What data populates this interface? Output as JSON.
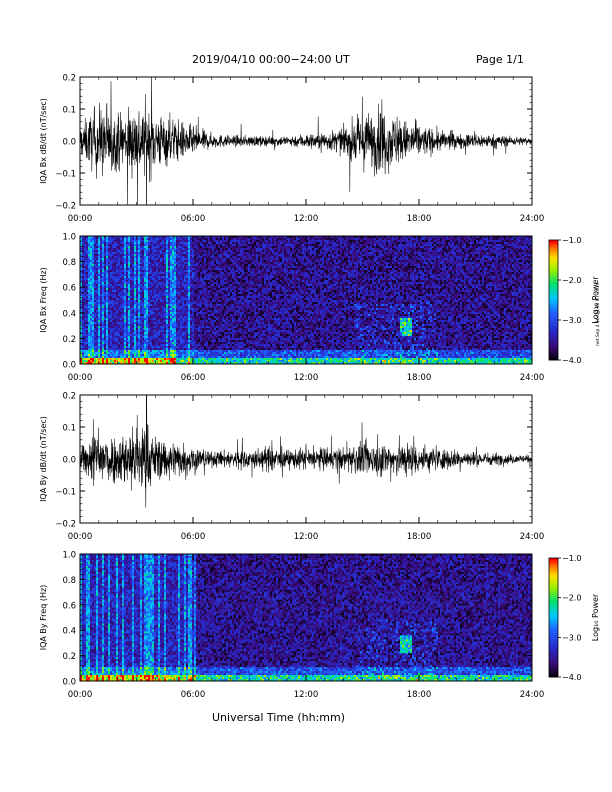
{
  "header": {
    "title": "2019/04/10   00:00−24:00 UT",
    "page": "Page 1/1"
  },
  "footer": {
    "xlabel": "Universal Time (hh:mm)",
    "stamp": "net Sep 4 16:09:38 UT 2019"
  },
  "colors": {
    "wave": "#000000",
    "background": "#ffffff",
    "spectrogram_bg": "#1b1a6e"
  },
  "chart_data": [
    {
      "type": "line",
      "ylabel": "IQA Bx dB/dt (nT/sec)",
      "xlabel": "",
      "xticks": [
        "00:00",
        "06:00",
        "12:00",
        "18:00",
        "24:00"
      ],
      "yticks": [
        "0.2",
        "0.1",
        "0.0",
        "−0.1",
        "−0.2"
      ],
      "xlim": [
        0,
        24
      ],
      "ylim": [
        -0.2,
        0.2
      ],
      "series": [
        {
          "x": [
            0,
            1,
            2,
            3,
            3.5,
            4,
            5,
            6,
            7,
            8,
            9,
            10,
            11,
            12,
            13,
            14,
            15,
            16,
            17,
            18,
            19,
            20,
            21,
            22,
            23,
            24
          ],
          "amplitude": [
            0.08,
            0.2,
            0.15,
            0.2,
            0.2,
            0.16,
            0.12,
            0.08,
            0.04,
            0.03,
            0.03,
            0.025,
            0.03,
            0.04,
            0.05,
            0.07,
            0.14,
            0.18,
            0.12,
            0.09,
            0.06,
            0.04,
            0.04,
            0.035,
            0.025,
            0.02
          ]
        }
      ]
    },
    {
      "type": "heatmap",
      "ylabel": "IQA Bx Freq (Hz)",
      "xticks": [
        "00:00",
        "06:00",
        "12:00",
        "18:00",
        "24:00"
      ],
      "yticks": [
        "1.0",
        "0.8",
        "0.6",
        "0.4",
        "0.2",
        "0.0"
      ],
      "xlim": [
        0,
        24
      ],
      "ylim": [
        0,
        1
      ],
      "colorbar": {
        "label": "Log₁₀ Power",
        "ticks": [
          "−1.0",
          "−2.0",
          "−3.0",
          "−4.0"
        ],
        "range": [
          -4,
          -1
        ]
      },
      "features": [
        {
          "x": [
            0,
            6
          ],
          "y": [
            0,
            1.0
          ],
          "level": -3.0,
          "desc": "broadband vertical bursts"
        },
        {
          "x": [
            16.9,
            17.6
          ],
          "y": [
            0.25,
            0.35
          ],
          "level": -2.6,
          "desc": "Pc1 emission"
        },
        {
          "x": [
            0,
            24
          ],
          "y": [
            0,
            0.05
          ],
          "level": -2.2,
          "desc": "low-frequency background"
        }
      ]
    },
    {
      "type": "line",
      "ylabel": "IQA By dB/dt (nT/sec)",
      "xticks": [
        "00:00",
        "06:00",
        "12:00",
        "18:00",
        "24:00"
      ],
      "yticks": [
        "0.2",
        "0.1",
        "0.0",
        "−0.1",
        "−0.2"
      ],
      "xlim": [
        0,
        24
      ],
      "ylim": [
        -0.2,
        0.2
      ],
      "series": [
        {
          "x": [
            0,
            1,
            2,
            3,
            3.5,
            4,
            5,
            6,
            7,
            8,
            9,
            10,
            11,
            12,
            13,
            14,
            15,
            16,
            17,
            18,
            19,
            20,
            21,
            22,
            23,
            24
          ],
          "amplitude": [
            0.06,
            0.17,
            0.12,
            0.2,
            0.2,
            0.12,
            0.1,
            0.08,
            0.04,
            0.05,
            0.05,
            0.07,
            0.05,
            0.06,
            0.06,
            0.06,
            0.09,
            0.09,
            0.1,
            0.08,
            0.06,
            0.05,
            0.04,
            0.035,
            0.025,
            0.02
          ]
        }
      ]
    },
    {
      "type": "heatmap",
      "ylabel": "IQA By Freq (Hz)",
      "xticks": [
        "00:00",
        "06:00",
        "12:00",
        "18:00",
        "24:00"
      ],
      "yticks": [
        "1.0",
        "0.8",
        "0.6",
        "0.4",
        "0.2",
        "0.0"
      ],
      "xlim": [
        0,
        24
      ],
      "ylim": [
        0,
        1
      ],
      "colorbar": {
        "label": "Log₁₀ Power",
        "ticks": [
          "−1.0",
          "−2.0",
          "−3.0",
          "−4.0"
        ],
        "range": [
          -4,
          -1
        ]
      },
      "features": [
        {
          "x": [
            0,
            6
          ],
          "y": [
            0,
            1.0
          ],
          "level": -3.0,
          "desc": "broadband vertical bursts"
        },
        {
          "x": [
            16.9,
            17.6
          ],
          "y": [
            0.25,
            0.35
          ],
          "level": -2.6,
          "desc": "Pc1 emission"
        },
        {
          "x": [
            0,
            24
          ],
          "y": [
            0,
            0.05
          ],
          "level": -2.2,
          "desc": "low-frequency background"
        }
      ]
    }
  ]
}
